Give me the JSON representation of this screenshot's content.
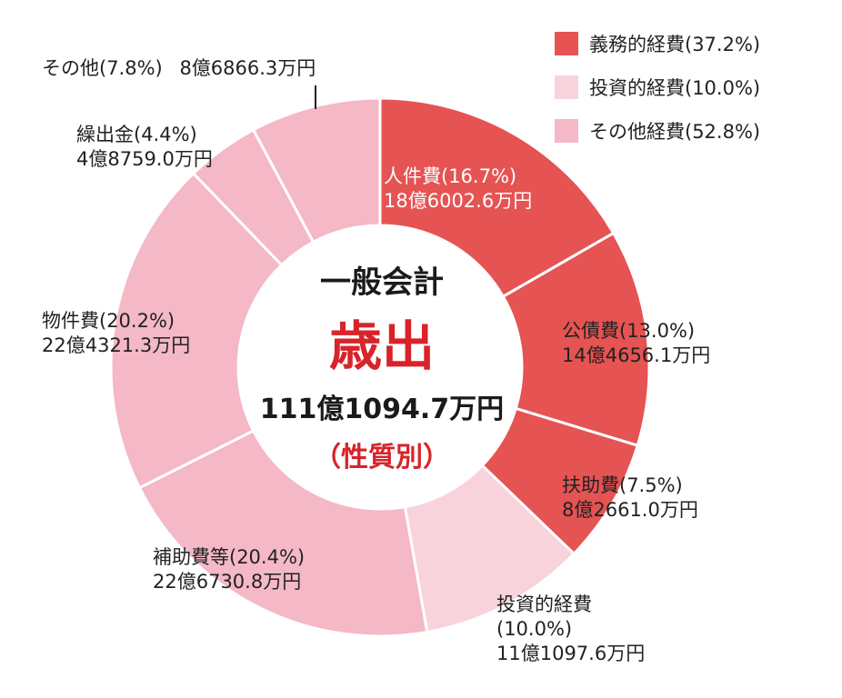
{
  "center": {
    "subtitle": "一般会計",
    "title": "歳出",
    "total": "111億1094.7万円",
    "classification": "（性質別）"
  },
  "legend": [
    {
      "label": "義務的経費(37.2%)",
      "color": "#e65353"
    },
    {
      "label": "投資的経費(10.0%)",
      "color": "#f9d3dc"
    },
    {
      "label": "その他経費(52.8%)",
      "color": "#f4b8c6"
    }
  ],
  "chart_data": {
    "type": "pie",
    "unit": "%",
    "slices": [
      {
        "name": "人件費(16.7%)",
        "amount": "18億6002.6万円",
        "value": 16.7,
        "group": "義務的経費",
        "color": "#e65353"
      },
      {
        "name": "公債費(13.0%)",
        "amount": "14億4656.1万円",
        "value": 13.0,
        "group": "義務的経費",
        "color": "#e65353"
      },
      {
        "name": "扶助費(7.5%)",
        "amount": "8億2661.0万円",
        "value": 7.5,
        "group": "義務的経費",
        "color": "#e65353"
      },
      {
        "name": "投資的経費",
        "name2": "(10.0%)",
        "amount": "11億1097.6万円",
        "value": 10.0,
        "group": "投資的経費",
        "color": "#f9d3dc"
      },
      {
        "name": "補助費等(20.4%)",
        "amount": "22億6730.8万円",
        "value": 20.4,
        "group": "その他経費",
        "color": "#f4b8c6"
      },
      {
        "name": "物件費(20.2%)",
        "amount": "22億4321.3万円",
        "value": 20.2,
        "group": "その他経費",
        "color": "#f4b8c6"
      },
      {
        "name": "繰出金(4.4%)",
        "amount": "4億8759.0万円",
        "value": 4.4,
        "group": "その他経費",
        "color": "#f4b8c6"
      },
      {
        "name": "その他(7.8%)",
        "amount": "8億6866.3万円",
        "value": 7.8,
        "group": "その他経費",
        "color": "#f4b8c6"
      }
    ]
  }
}
